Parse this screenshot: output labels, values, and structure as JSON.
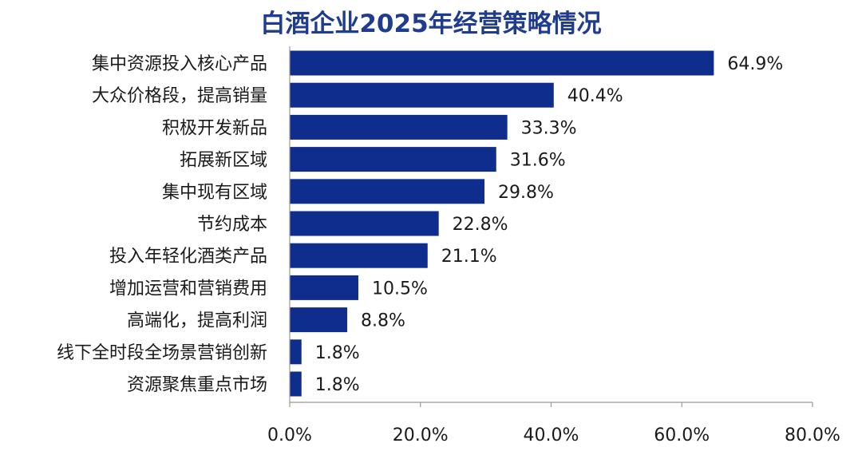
{
  "chart_data": {
    "type": "bar",
    "orientation": "horizontal",
    "title": "白酒企业2025年经营策略情况",
    "categories": [
      "集中资源投入核心产品",
      "大众价格段，提高销量",
      "积极开发新品",
      "拓展新区域",
      "集中现有区域",
      "节约成本",
      "投入年轻化酒类产品",
      "增加运营和营销费用",
      "高端化，提高利润",
      "线下全时段全场景营销创新",
      "资源聚焦重点市场"
    ],
    "values": [
      64.9,
      40.4,
      33.3,
      31.6,
      29.8,
      22.8,
      21.1,
      10.5,
      8.8,
      1.8,
      1.8
    ],
    "data_labels": [
      "64.9%",
      "40.4%",
      "33.3%",
      "31.6%",
      "29.8%",
      "22.8%",
      "21.1%",
      "10.5%",
      "8.8%",
      "1.8%",
      "1.8%"
    ],
    "xlim": [
      0,
      80
    ],
    "xticks": [
      0,
      20,
      40,
      60,
      80
    ],
    "xtick_labels": [
      "0.0%",
      "20.0%",
      "40.0%",
      "60.0%",
      "80.0%"
    ],
    "xlabel": "",
    "ylabel": "",
    "grid": false,
    "legend": "none",
    "colors": {
      "bar": "#0f2d8c",
      "title": "#1f3c8f",
      "axis": "#999999"
    }
  }
}
